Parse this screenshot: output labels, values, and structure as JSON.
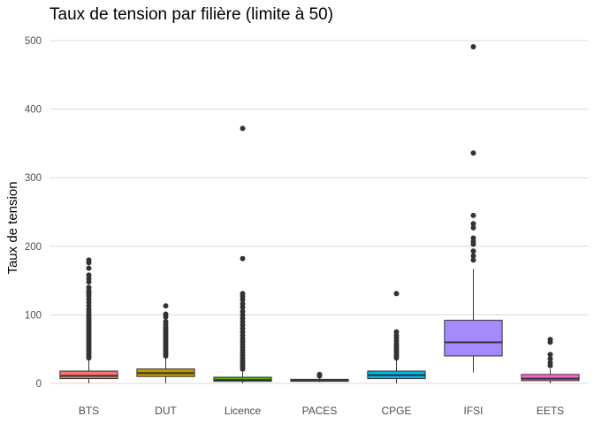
{
  "chart_data": {
    "type": "box",
    "title": "Taux de tension par filière (limite à 50)",
    "xlabel": "",
    "ylabel": "Taux de tension",
    "ylim": [
      0,
      510
    ],
    "yticks": [
      0,
      100,
      200,
      300,
      400,
      500
    ],
    "grid": "horizontal",
    "legend": "none",
    "categories": [
      "BTS",
      "DUT",
      "Licence",
      "PACES",
      "CPGE",
      "IFSI",
      "EETS"
    ],
    "boxes": [
      {
        "name": "BTS",
        "color": "#F8766D",
        "q1": 7,
        "median": 11,
        "q3": 18,
        "whisker_low": 0,
        "whisker_high": 34,
        "outliers": [
          180,
          176,
          168,
          158,
          153,
          148,
          140,
          135,
          132,
          128,
          123,
          118,
          113,
          108,
          104,
          100,
          97,
          94,
          91,
          88,
          85,
          82,
          79,
          76,
          73,
          70,
          67,
          64,
          61,
          58,
          55,
          52,
          49,
          46,
          43,
          40,
          37
        ]
      },
      {
        "name": "DUT",
        "color": "#C49A00",
        "q1": 10,
        "median": 15,
        "q3": 21,
        "whisker_low": 0,
        "whisker_high": 37,
        "outliers": [
          113,
          101,
          97,
          90,
          86,
          82,
          79,
          76,
          73,
          70,
          67,
          64,
          61,
          58,
          55,
          52,
          49,
          46,
          43,
          40
        ]
      },
      {
        "name": "Licence",
        "color": "#53B400",
        "q1": 3,
        "median": 5,
        "q3": 9,
        "whisker_low": 0,
        "whisker_high": 18,
        "outliers": [
          372,
          182,
          131,
          127,
          122,
          116,
          111,
          105,
          100,
          95,
          90,
          85,
          80,
          75,
          70,
          65,
          61,
          57,
          53,
          49,
          45,
          41,
          37,
          33,
          30,
          27,
          24,
          21
        ]
      },
      {
        "name": "PACES",
        "color": "#00C094",
        "q1": 3,
        "median": 4,
        "q3": 6,
        "whisker_low": 2,
        "whisker_high": 9,
        "outliers": [
          13,
          11
        ]
      },
      {
        "name": "CPGE",
        "color": "#00B6EB",
        "q1": 7,
        "median": 12,
        "q3": 18,
        "whisker_low": 0,
        "whisker_high": 35,
        "outliers": [
          131,
          75,
          70,
          66,
          62,
          58,
          55,
          52,
          49,
          46,
          43,
          40,
          37
        ]
      },
      {
        "name": "IFSI",
        "color": "#A58AFF",
        "q1": 40,
        "median": 60,
        "q3": 92,
        "whisker_low": 16,
        "whisker_high": 167,
        "outliers": [
          491,
          336,
          245,
          233,
          227,
          212,
          207,
          203,
          193,
          186,
          180
        ]
      },
      {
        "name": "EETS",
        "color": "#FB61D7",
        "q1": 4,
        "median": 7,
        "q3": 13,
        "whisker_low": 0,
        "whisker_high": 21,
        "outliers": [
          64,
          60,
          42,
          36,
          30,
          26
        ]
      }
    ]
  }
}
